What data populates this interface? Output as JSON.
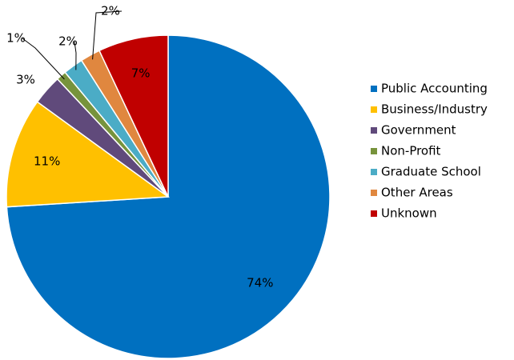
{
  "chart_data": {
    "type": "pie",
    "categories": [
      "Public Accounting",
      "Business/Industry",
      "Government",
      "Non-Profit",
      "Graduate School",
      "Other Areas",
      "Unknown"
    ],
    "values": [
      74,
      11,
      3,
      1,
      2,
      2,
      7
    ],
    "value_labels": [
      "74%",
      "11%",
      "3%",
      "1%",
      "2%",
      "2%",
      "7%"
    ],
    "colors": [
      "#0070c0",
      "#ffc000",
      "#604a7b",
      "#77933c",
      "#4bacc6",
      "#e0873f",
      "#c00000"
    ],
    "legend": "right"
  }
}
